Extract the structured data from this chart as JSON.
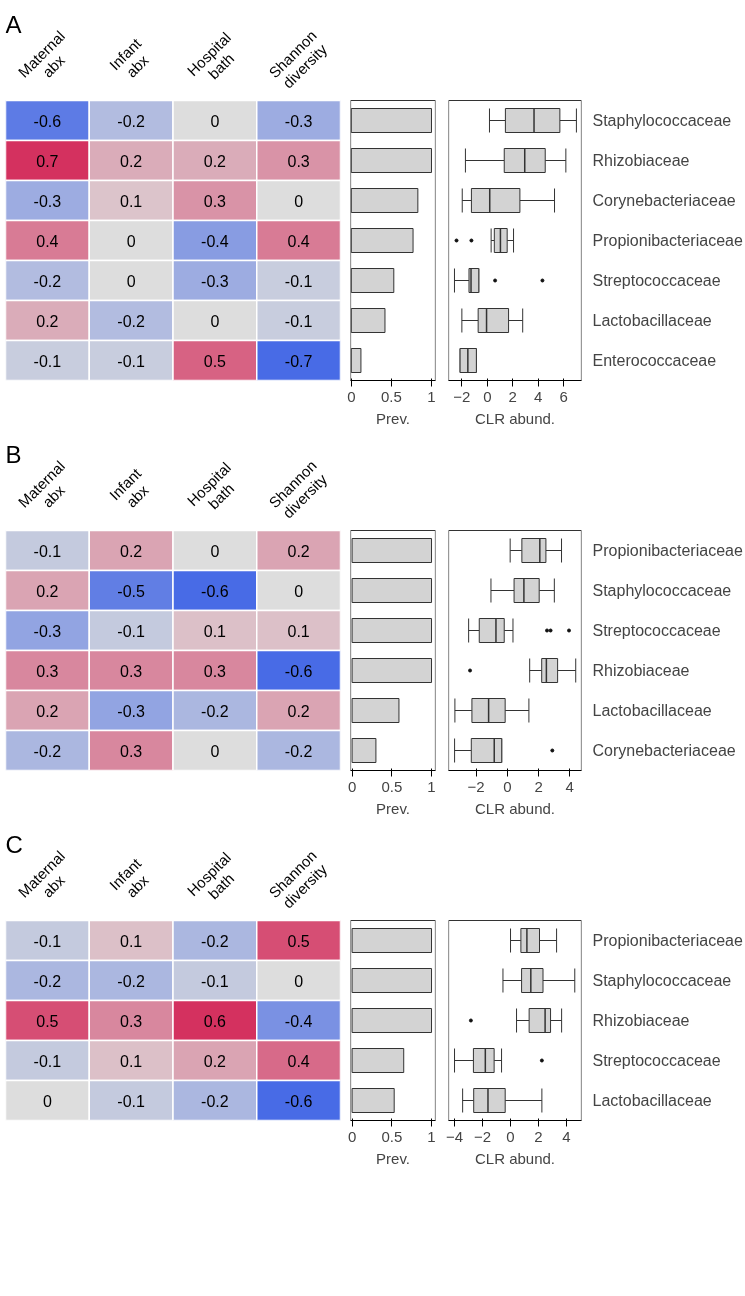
{
  "chart_data": [
    {
      "type": "heatmap",
      "title": "A",
      "categories": [
        "Maternal abx",
        "Infant abx",
        "Hospital bath",
        "Shannon diversity"
      ],
      "y_categories": [
        null,
        null,
        null,
        null,
        null,
        null,
        null
      ],
      "data_labels": true,
      "cells": [
        [
          -0.6,
          -0.2,
          0,
          -0.3
        ],
        [
          0.7,
          0.2,
          0.2,
          0.3
        ],
        [
          -0.3,
          0.1,
          0.3,
          0
        ],
        [
          0.4,
          0,
          -0.4,
          0.4
        ],
        [
          -0.2,
          0,
          -0.3,
          -0.1
        ],
        [
          0.2,
          -0.2,
          0,
          -0.1
        ],
        [
          -0.1,
          -0.1,
          0.5,
          -0.7
        ]
      ]
    },
    {
      "type": "bar",
      "orientation": "horizontal",
      "categories": [
        null,
        null,
        null,
        null,
        null,
        null,
        null
      ],
      "values": [
        1,
        1,
        0.83,
        0.77,
        0.53,
        0.42,
        0.12
      ],
      "color": "#d3d3d3",
      "xlim": [
        -0.01,
        1.05
      ],
      "xticks": [
        0,
        0.5,
        1
      ],
      "xlabel": "Prev.",
      "tick_labels": "x",
      "grid": false
    },
    {
      "type": "box",
      "orientation": "horizontal",
      "categories": [
        "Staphylococcaceae",
        "Rhizobiaceae",
        "Corynebacteriaceae",
        "Propionibacteriaceae",
        "Streptococcaceae",
        "Lactobacillaceae",
        "Enterococcaceae"
      ],
      "xlim": [
        -3.05,
        7.4
      ],
      "xticks": [
        -2,
        0,
        2,
        4,
        6
      ],
      "xlabel": "CLR abund.",
      "grid": false,
      "boxes": [
        {
          "low": 0.17,
          "q1": 1.42,
          "median": 3.67,
          "q3": 5.7,
          "high": 7.0
        },
        {
          "low": -1.72,
          "q1": 1.33,
          "median": 2.94,
          "q3": 4.55,
          "high": 6.17
        },
        {
          "low": -1.97,
          "q1": -1.25,
          "median": 0.19,
          "q3": 2.56,
          "high": 5.28
        },
        {
          "low": 0.3,
          "q1": 0.55,
          "median": 1.03,
          "q3": 1.56,
          "high": 2.06,
          "outliers": [
            -2.42,
            -1.25
          ]
        },
        {
          "low": -2.58,
          "q1": -1.44,
          "median": -1.28,
          "q3": -0.67,
          "high": -0.67,
          "outliers": [
            0.61,
            4.33
          ]
        },
        {
          "low": -2.0,
          "q1": -0.72,
          "median": -0.06,
          "q3": 1.67,
          "high": 2.78
        },
        {
          "low": -2.14,
          "q1": -2.14,
          "median": -1.53,
          "q3": -0.86,
          "high": -0.86
        }
      ]
    },
    {
      "type": "heatmap",
      "title": "B",
      "categories": [
        "Maternal abx",
        "Infant abx",
        "Hospital bath",
        "Shannon diversity"
      ],
      "y_categories": [
        null,
        null,
        null,
        null,
        null,
        null
      ],
      "data_labels": true,
      "cells": [
        [
          -0.1,
          0.2,
          0,
          0.2
        ],
        [
          0.2,
          -0.5,
          -0.6,
          0
        ],
        [
          -0.3,
          -0.1,
          0.1,
          0.1
        ],
        [
          0.3,
          0.3,
          0.3,
          -0.6
        ],
        [
          0.2,
          -0.3,
          -0.2,
          0.2
        ],
        [
          -0.2,
          0.3,
          0,
          -0.2
        ]
      ]
    },
    {
      "type": "bar",
      "orientation": "horizontal",
      "categories": [
        null,
        null,
        null,
        null,
        null,
        null
      ],
      "values": [
        1,
        1,
        1,
        1,
        0.59,
        0.3
      ],
      "color": "#d3d3d3",
      "xlim": [
        -0.02,
        1.05
      ],
      "xticks": [
        0,
        0.5,
        1
      ],
      "xlabel": "Prev.",
      "tick_labels": "x",
      "grid": false
    },
    {
      "type": "box",
      "orientation": "horizontal",
      "categories": [
        "Propionibacteriaceae",
        "Staphylococcaceae",
        "Streptococcaceae",
        "Rhizobiaceae",
        "Lactobacillaceae",
        "Corynebacteriaceae"
      ],
      "xlim": [
        -3.77,
        4.75
      ],
      "xticks": [
        -2,
        0,
        2,
        4
      ],
      "xlabel": "CLR abund.",
      "grid": false,
      "boxes": [
        {
          "low": 0.18,
          "q1": 0.93,
          "median": 2.08,
          "q3": 2.47,
          "high": 3.47
        },
        {
          "low": -1.05,
          "q1": 0.43,
          "median": 1.06,
          "q3": 2.04,
          "high": 3.01
        },
        {
          "low": -2.48,
          "q1": -1.8,
          "median": -0.73,
          "q3": -0.2,
          "high": 0.36,
          "outliers": [
            2.54,
            2.77,
            3.95
          ]
        },
        {
          "low": 1.43,
          "q1": 2.2,
          "median": 2.5,
          "q3": 3.22,
          "high": 4.38,
          "outliers": [
            -2.39
          ]
        },
        {
          "low": -3.36,
          "q1": -2.27,
          "median": -1.2,
          "q3": -0.14,
          "high": 1.38
        },
        {
          "low": -3.38,
          "q1": -2.31,
          "median": -0.84,
          "q3": -0.36,
          "high": -0.36,
          "outliers": [
            2.88
          ]
        }
      ]
    },
    {
      "type": "heatmap",
      "title": "C",
      "categories": [
        "Maternal abx",
        "Infant abx",
        "Hospital bath",
        "Shannon diversity"
      ],
      "y_categories": [
        null,
        null,
        null,
        null,
        null
      ],
      "data_labels": true,
      "cells": [
        [
          -0.1,
          0.1,
          -0.2,
          0.5
        ],
        [
          -0.2,
          -0.2,
          -0.1,
          0
        ],
        [
          0.5,
          0.3,
          0.6,
          -0.4
        ],
        [
          -0.1,
          0.1,
          0.2,
          0.4
        ],
        [
          0,
          -0.1,
          -0.2,
          -0.6
        ]
      ]
    },
    {
      "type": "bar",
      "orientation": "horizontal",
      "categories": [
        null,
        null,
        null,
        null,
        null
      ],
      "values": [
        1,
        1,
        1,
        0.65,
        0.53
      ],
      "color": "#d3d3d3",
      "xlim": [
        -0.02,
        1.05
      ],
      "xticks": [
        0,
        0.5,
        1
      ],
      "xlabel": "Prev.",
      "tick_labels": "x",
      "grid": false
    },
    {
      "type": "box",
      "orientation": "horizontal",
      "categories": [
        "Propionibacteriaceae",
        "Staphylococcaceae",
        "Rhizobiaceae",
        "Streptococcaceae",
        "Lactobacillaceae"
      ],
      "xlim": [
        -4.43,
        5.07
      ],
      "xticks": [
        -4,
        -2,
        0,
        2,
        4
      ],
      "xlabel": "CLR abund.",
      "grid": false,
      "boxes": [
        {
          "low": 0,
          "q1": 0.74,
          "median": 1.17,
          "q3": 2.07,
          "high": 3.29
        },
        {
          "low": -0.54,
          "q1": 0.79,
          "median": 1.45,
          "q3": 2.32,
          "high": 4.59
        },
        {
          "low": 0.43,
          "q1": 1.33,
          "median": 2.47,
          "q3": 2.86,
          "high": 3.65,
          "outliers": [
            -2.83
          ]
        },
        {
          "low": -4,
          "q1": -2.65,
          "median": -1.8,
          "q3": -1.17,
          "high": -0.64,
          "outliers": [
            2.24
          ]
        },
        {
          "low": -3.42,
          "q1": -2.63,
          "median": -1.61,
          "q3": -0.38,
          "high": 2.24
        }
      ]
    }
  ]
}
